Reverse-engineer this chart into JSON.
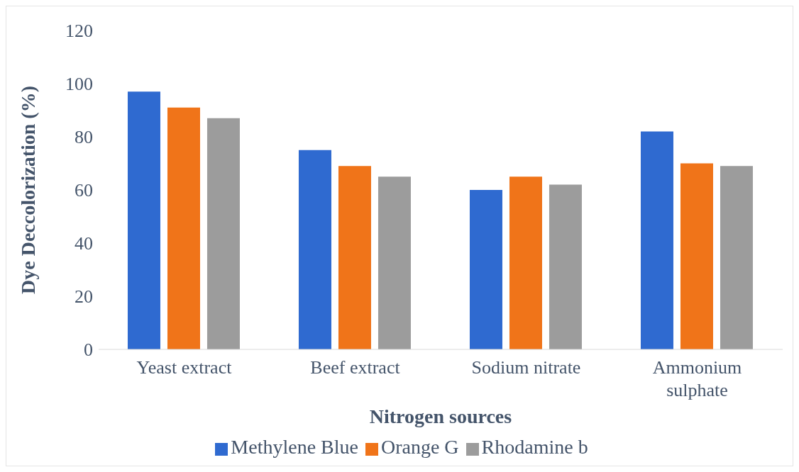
{
  "chart_data": {
    "type": "bar",
    "xlabel": "Nitrogen sources",
    "ylabel": "Dye Deccolorization (%)",
    "categories": [
      "Yeast extract",
      "Beef extract",
      "Sodium nitrate",
      "Ammonium sulphate"
    ],
    "series": [
      {
        "name": "Methylene Blue",
        "color": "#2f6ad0",
        "values": [
          97,
          75,
          60,
          82
        ]
      },
      {
        "name": "Orange G",
        "color": "#f07419",
        "values": [
          91,
          69,
          65,
          70
        ]
      },
      {
        "name": "Rhodamine b",
        "color": "#9c9c9c",
        "values": [
          87,
          65,
          62,
          69
        ]
      }
    ],
    "ylim": [
      0,
      120
    ],
    "yticks": [
      0,
      20,
      40,
      60,
      80,
      100,
      120
    ],
    "grid": false,
    "legend": "bottom"
  }
}
